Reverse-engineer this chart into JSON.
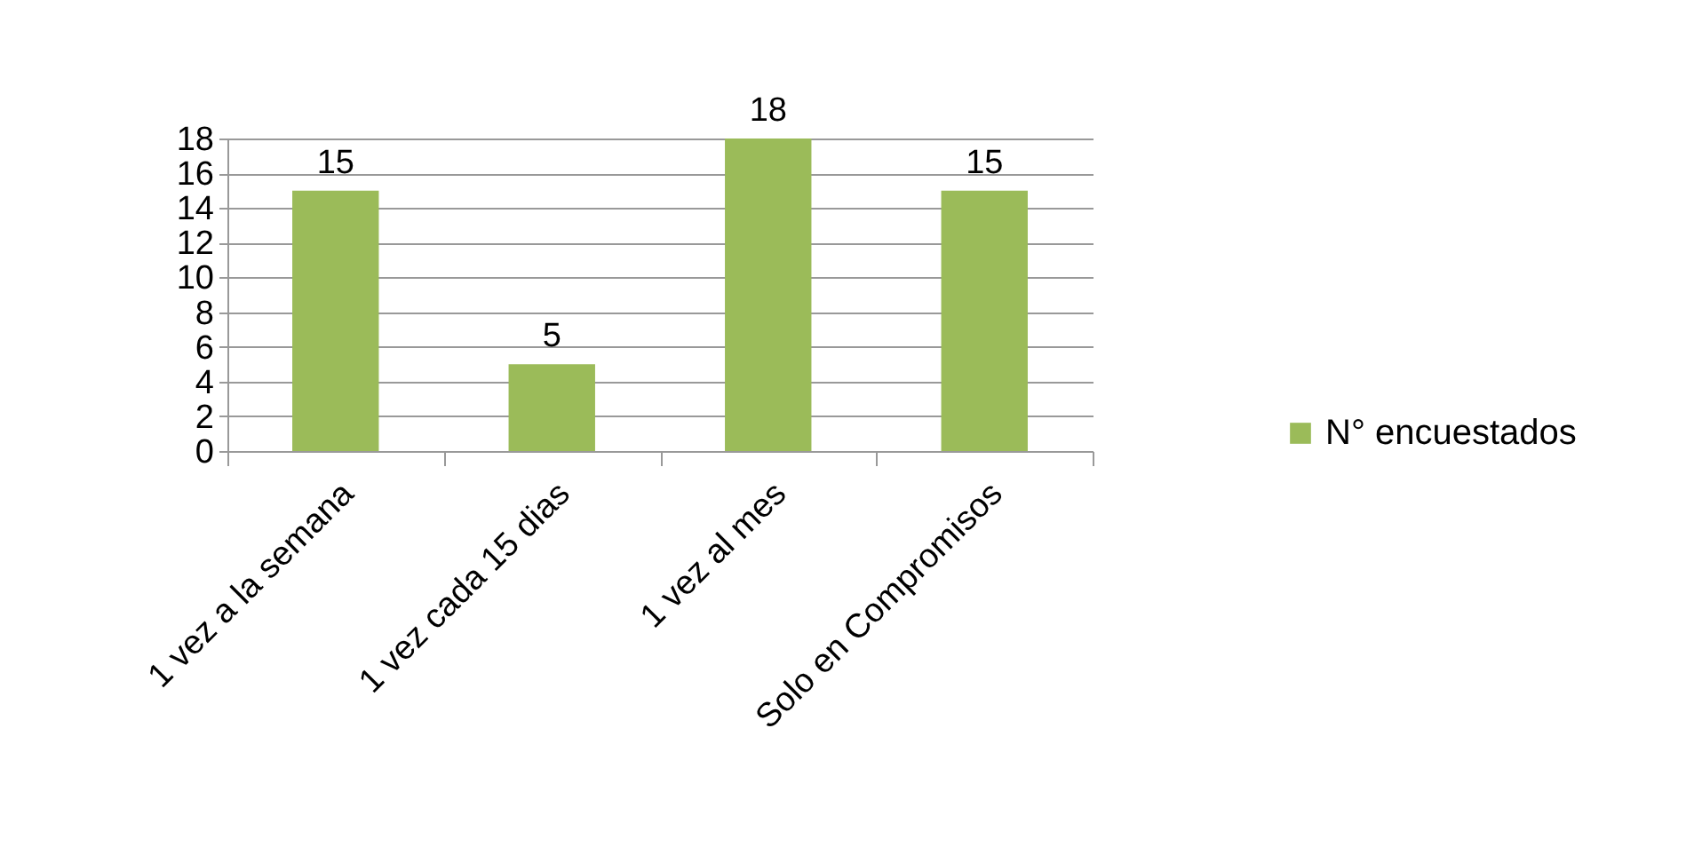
{
  "chart_data": {
    "type": "bar",
    "categories": [
      "1 vez a la semana",
      "1 vez cada 15 dias",
      "1 vez al mes",
      "Solo en Compromisos"
    ],
    "series": [
      {
        "name": "N° encuestados",
        "color": "#9bbb59",
        "values": [
          15,
          5,
          18,
          15
        ]
      }
    ],
    "ylim": [
      0,
      18
    ],
    "yticks": [
      0,
      2,
      4,
      6,
      8,
      10,
      12,
      14,
      16,
      18
    ],
    "grid": "y",
    "legend": "right",
    "data_labels": true
  }
}
